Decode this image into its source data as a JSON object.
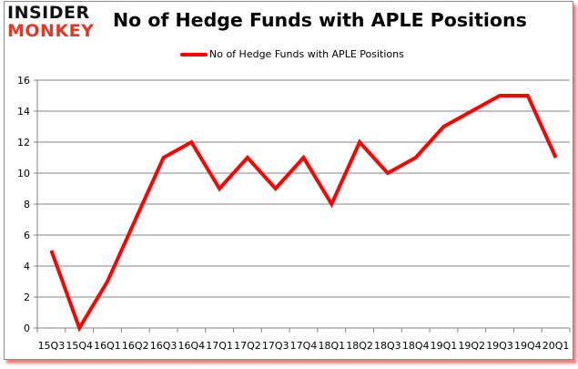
{
  "logo": {
    "line1": "INSIDER",
    "line2": "MONKEY"
  },
  "chart_data": {
    "type": "line",
    "title": "No of Hedge Funds with APLE Positions",
    "xlabel": "",
    "ylabel": "",
    "categories": [
      "15Q3",
      "15Q4",
      "16Q1",
      "16Q2",
      "16Q3",
      "16Q4",
      "17Q1",
      "17Q2",
      "17Q3",
      "17Q4",
      "18Q1",
      "18Q2",
      "18Q3",
      "18Q4",
      "19Q1",
      "19Q2",
      "19Q3",
      "19Q4",
      "20Q1"
    ],
    "series": [
      {
        "name": "No of Hedge Funds with APLE Positions",
        "color": "#ff0000",
        "values": [
          5,
          0,
          3,
          7,
          11,
          12,
          9,
          11,
          9,
          11,
          8,
          12,
          10,
          11,
          13,
          14,
          15,
          15,
          11
        ]
      }
    ],
    "ylim": [
      0,
      16
    ],
    "yticks": [
      0,
      2,
      4,
      6,
      8,
      10,
      12,
      14,
      16
    ],
    "grid": true,
    "legend_position": "top"
  }
}
